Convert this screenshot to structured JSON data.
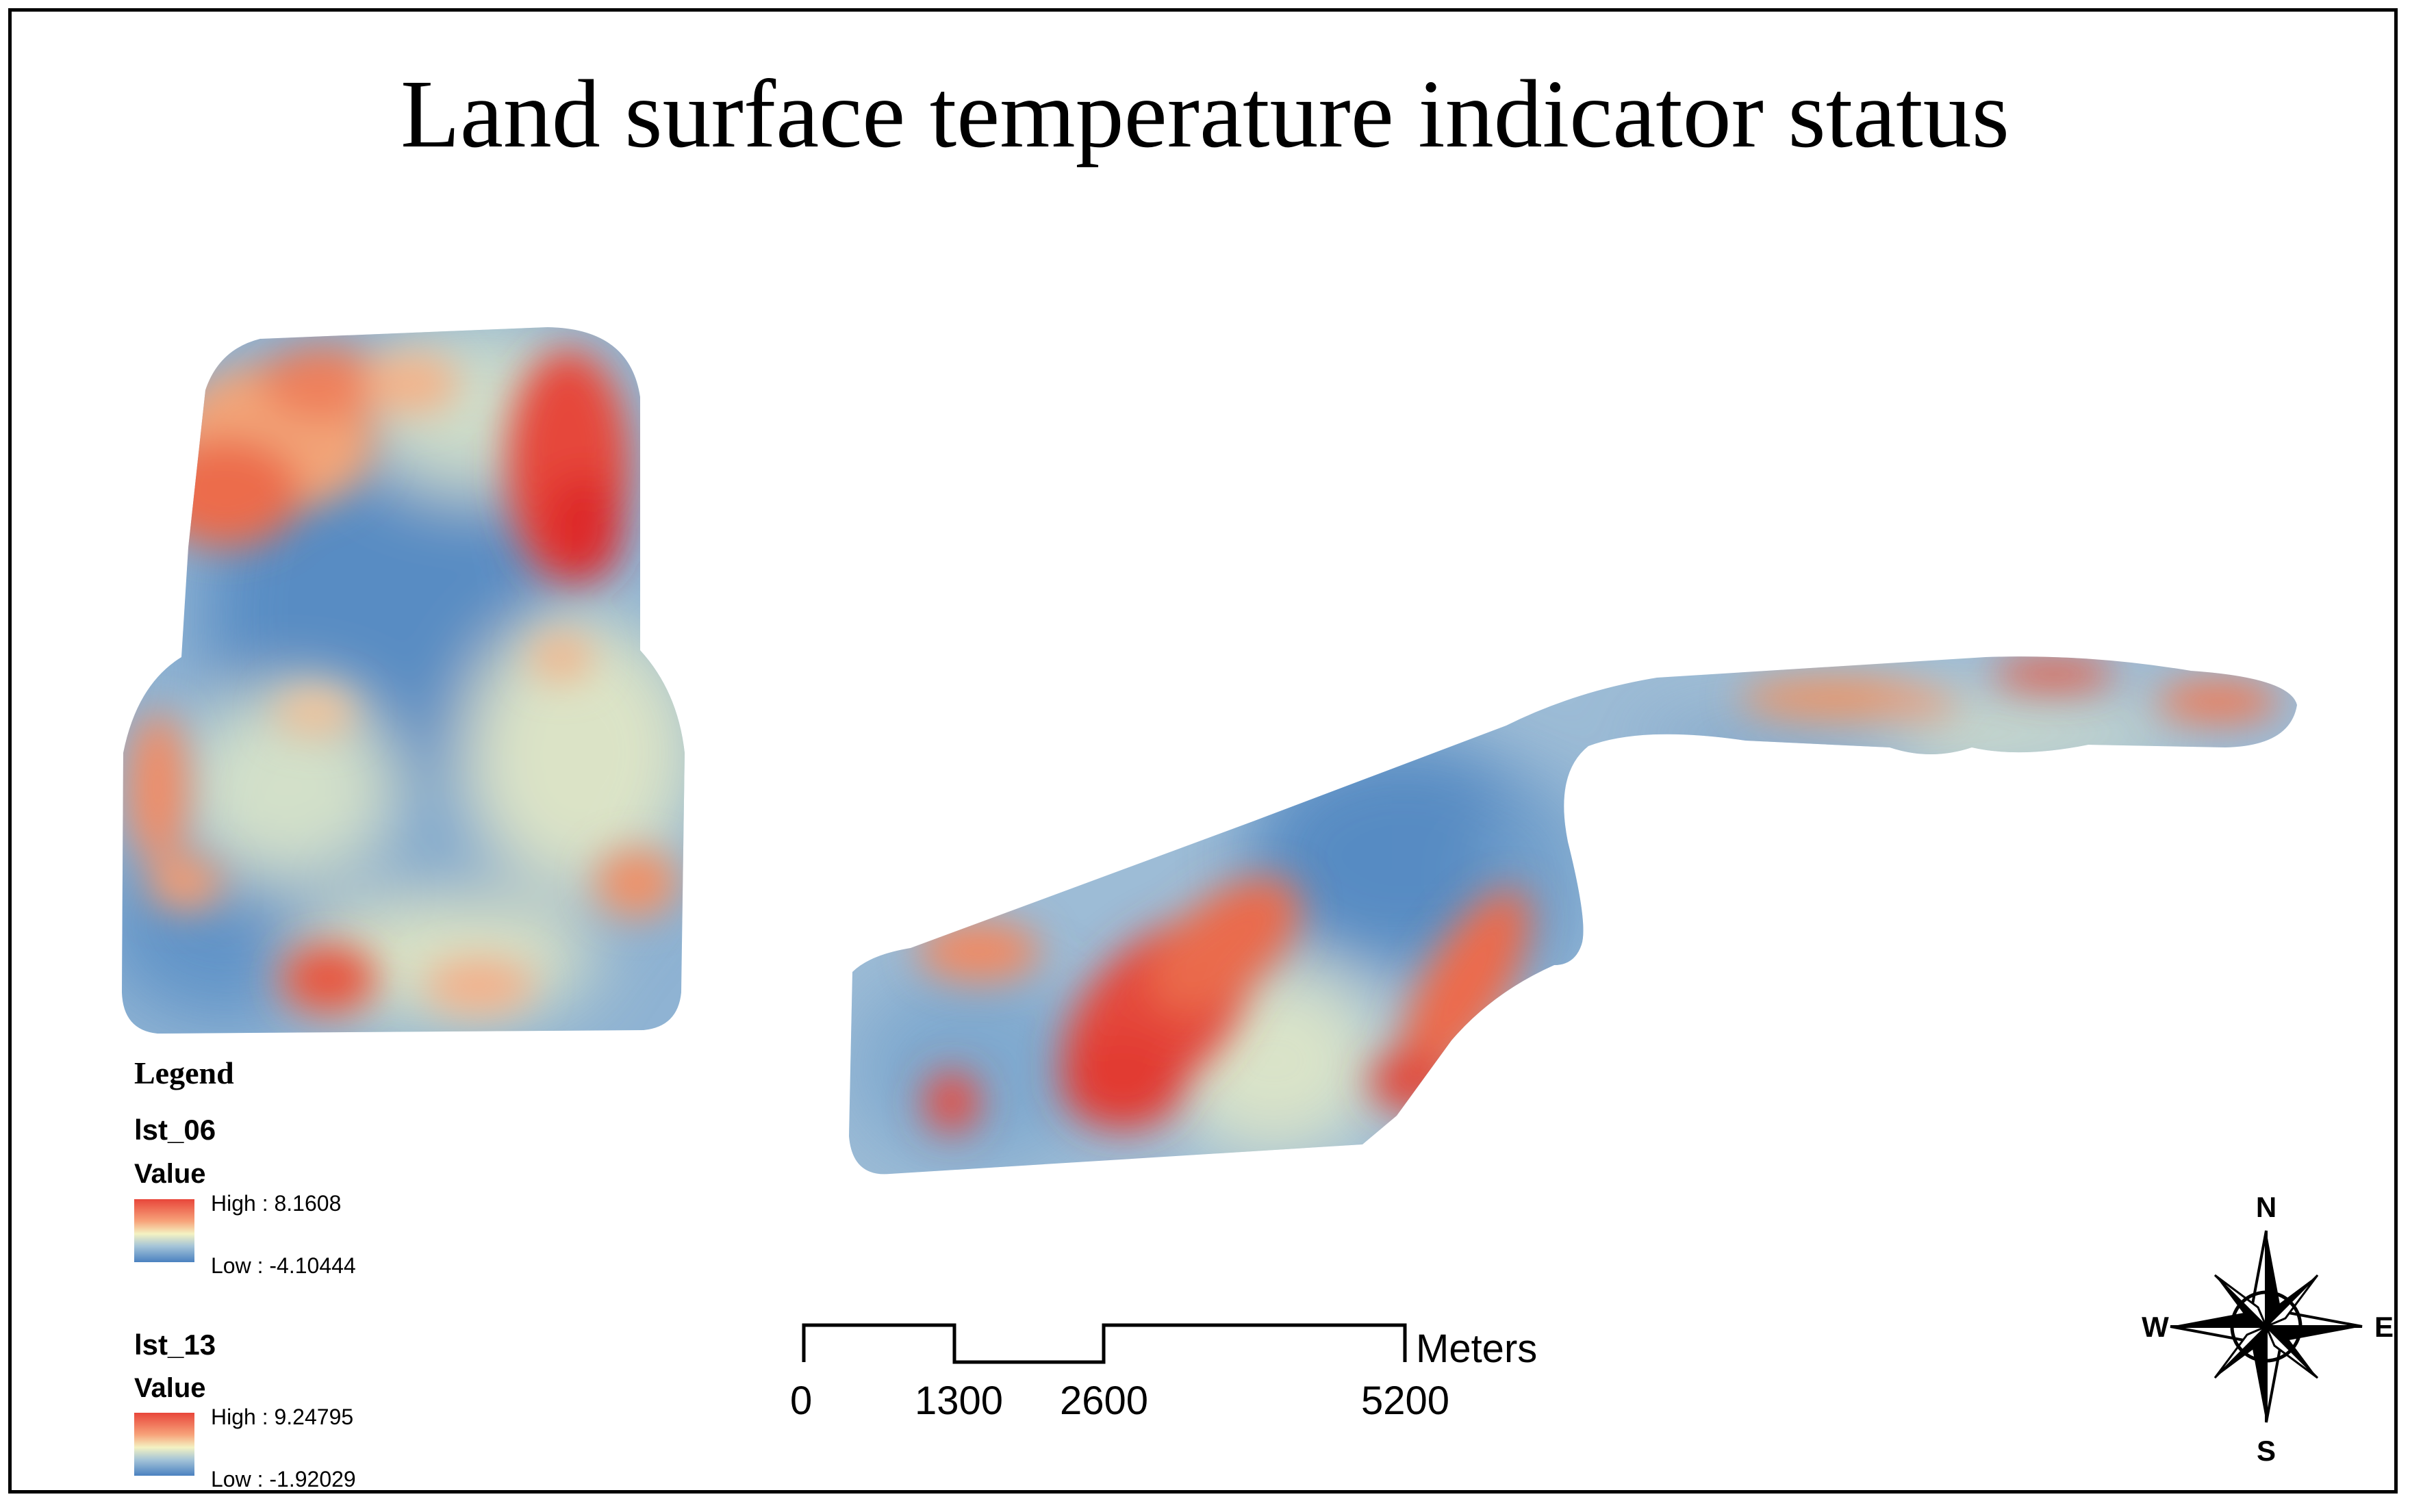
{
  "title": "Land surface temperature indicator status",
  "legend": {
    "heading": "Legend",
    "layers": [
      {
        "name": "lst_06",
        "value_label": "Value",
        "high": "High : 8.1608",
        "low": "Low : -4.10444"
      },
      {
        "name": "lst_13",
        "value_label": "Value",
        "high": "High : 9.24795",
        "low": "Low : -1.92029"
      }
    ]
  },
  "scale_bar": {
    "ticks": [
      "0",
      "1300",
      "2600",
      "5200"
    ],
    "unit": "Meters"
  },
  "north_arrow": {
    "n": "N",
    "s": "S",
    "e": "E",
    "w": "W"
  },
  "colors": {
    "high": "#e8463a",
    "mid": "#f4f2c2",
    "low": "#4a81c0"
  }
}
